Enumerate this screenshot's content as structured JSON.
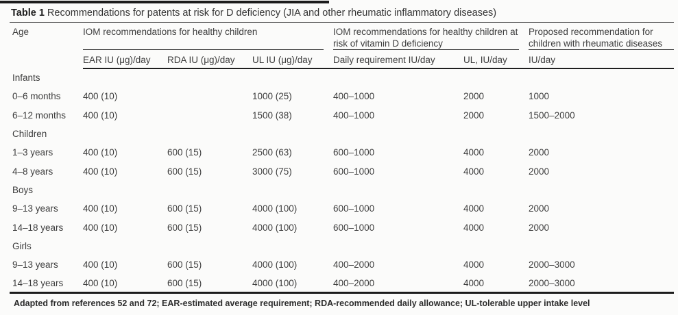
{
  "title": {
    "label": "Table 1",
    "text": "Recommendations for patents at risk for D deficiency (JIA and other rheumatic inflammatory diseases)"
  },
  "colors": {
    "text": "#3d3d3d",
    "rule": "#1c1c1c",
    "background": "#fbfbfa"
  },
  "table": {
    "col1_header": "Age",
    "groups": [
      {
        "label": "IOM recommendations for healthy children",
        "sub": [
          "EAR IU (μg)/day",
          "RDA IU (μg)/day",
          "UL IU (μg)/day"
        ]
      },
      {
        "label": "IOM recommendations for healthy children at risk of vitamin D deficiency",
        "sub": [
          "Daily requirement IU/day",
          "UL, IU/day"
        ]
      },
      {
        "label": "Proposed recommendation for children with rheumatic diseases",
        "sub": [
          "IU/day"
        ]
      }
    ],
    "rows": [
      {
        "type": "section",
        "age": "Infants",
        "cells": [
          "",
          "",
          "",
          "",
          "",
          ""
        ]
      },
      {
        "type": "data",
        "age": "0–6 months",
        "cells": [
          "400 (10)",
          "",
          "1000 (25)",
          "400–1000",
          "2000",
          "1000"
        ]
      },
      {
        "type": "data",
        "age": "6–12 months",
        "cells": [
          "400 (10)",
          "",
          "1500 (38)",
          "400–1000",
          "2000",
          "1500–2000"
        ]
      },
      {
        "type": "section",
        "age": "Children",
        "cells": [
          "",
          "",
          "",
          "",
          "",
          ""
        ]
      },
      {
        "type": "data",
        "age": "1–3 years",
        "cells": [
          "400 (10)",
          "600 (15)",
          "2500 (63)",
          "600–1000",
          "4000",
          "2000"
        ]
      },
      {
        "type": "data",
        "age": "4–8 years",
        "cells": [
          "400 (10)",
          "600 (15)",
          "3000 (75)",
          "600–1000",
          "4000",
          "2000"
        ]
      },
      {
        "type": "section",
        "age": "Boys",
        "cells": [
          "",
          "",
          "",
          "",
          "",
          ""
        ]
      },
      {
        "type": "data",
        "age": "9–13 years",
        "cells": [
          "400 (10)",
          "600 (15)",
          "4000 (100)",
          "600–1000",
          "4000",
          "2000"
        ]
      },
      {
        "type": "data",
        "age": "14–18 years",
        "cells": [
          "400 (10)",
          "600 (15)",
          "4000 (100)",
          "600–1000",
          "4000",
          "2000"
        ]
      },
      {
        "type": "section",
        "age": "Girls",
        "cells": [
          "",
          "",
          "",
          "",
          "",
          ""
        ]
      },
      {
        "type": "data",
        "age": "9–13 years",
        "cells": [
          "400 (10)",
          "600 (15)",
          "4000 (100)",
          "400–2000",
          "4000",
          "2000–3000"
        ]
      },
      {
        "type": "data",
        "age": "14–18 years",
        "cells": [
          "400 (10)",
          "600 (15)",
          "4000 (100)",
          "400–2000",
          "4000",
          "2000–3000"
        ]
      }
    ]
  },
  "footnote": "Adapted from references 52 and 72; EAR-estimated average requirement; RDA-recommended daily allowance; UL-tolerable upper intake level"
}
